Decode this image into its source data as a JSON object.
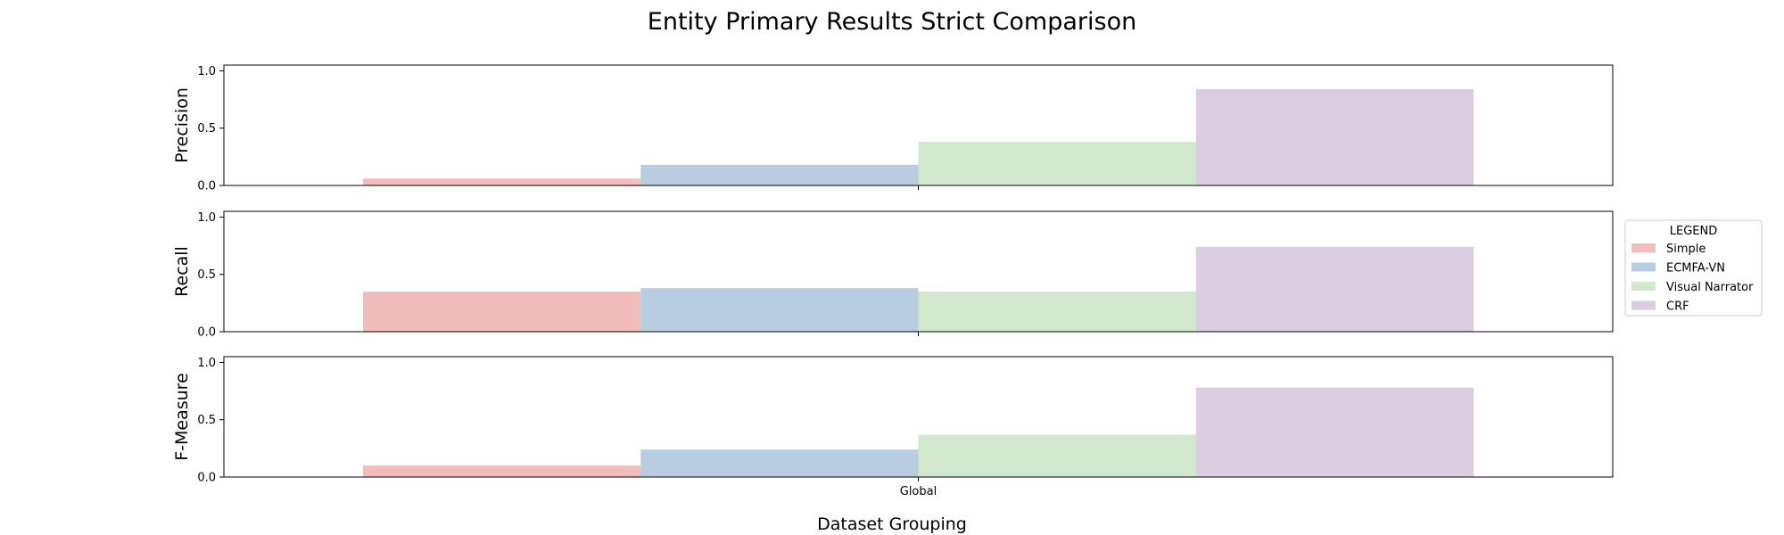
{
  "chart_data": {
    "type": "bar",
    "title": "Entity Primary Results Strict Comparison",
    "xlabel": "Dataset Grouping",
    "categories": [
      "Global"
    ],
    "ylim": [
      0,
      1.05
    ],
    "yticks": [
      "0.0",
      "0.5",
      "1.0"
    ],
    "grid": false,
    "legend": {
      "title": "LEGEND",
      "placement": "right",
      "entries": [
        "Simple",
        "ECMFA-VN",
        "Visual Narrator",
        "CRF"
      ]
    },
    "colors": {
      "Simple": "#f1bcb9",
      "ECMFA-VN": "#b8cde0",
      "Visual Narrator": "#d0e8cb",
      "CRF": "#dbcee3"
    },
    "panels": [
      {
        "ylabel": "Precision",
        "series": [
          {
            "name": "Simple",
            "values": [
              0.06
            ]
          },
          {
            "name": "ECMFA-VN",
            "values": [
              0.18
            ]
          },
          {
            "name": "Visual Narrator",
            "values": [
              0.38
            ]
          },
          {
            "name": "CRF",
            "values": [
              0.84
            ]
          }
        ]
      },
      {
        "ylabel": "Recall",
        "series": [
          {
            "name": "Simple",
            "values": [
              0.35
            ]
          },
          {
            "name": "ECMFA-VN",
            "values": [
              0.38
            ]
          },
          {
            "name": "Visual Narrator",
            "values": [
              0.35
            ]
          },
          {
            "name": "CRF",
            "values": [
              0.74
            ]
          }
        ]
      },
      {
        "ylabel": "F-Measure",
        "series": [
          {
            "name": "Simple",
            "values": [
              0.1
            ]
          },
          {
            "name": "ECMFA-VN",
            "values": [
              0.24
            ]
          },
          {
            "name": "Visual Narrator",
            "values": [
              0.37
            ]
          },
          {
            "name": "CRF",
            "values": [
              0.78
            ]
          }
        ]
      }
    ]
  }
}
